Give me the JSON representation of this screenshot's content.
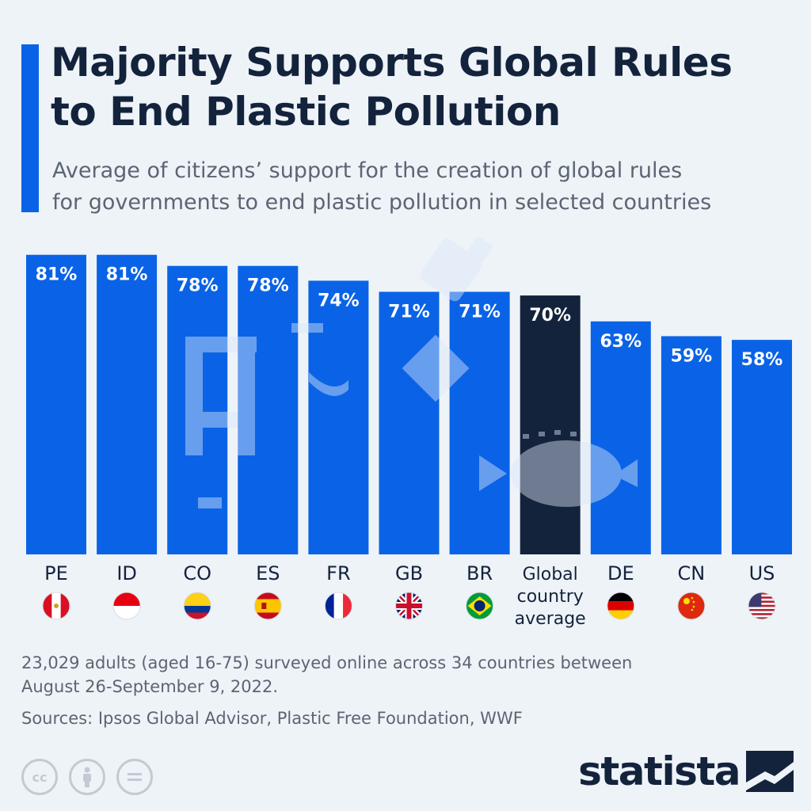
{
  "header": {
    "title_line1": "Majority Supports Global Rules",
    "title_line2": "to End Plastic Pollution",
    "subtitle_line1": "Average of citizens’ support for the creation of global rules",
    "subtitle_line2": "for governments to end plastic pollution in selected countries"
  },
  "chart_data": {
    "type": "bar",
    "title": "Majority Supports Global Rules to End Plastic Pollution",
    "subtitle": "Average of citizens’ support for the creation of global rules for governments to end plastic pollution in selected countries",
    "categories": [
      "PE",
      "ID",
      "CO",
      "ES",
      "FR",
      "GB",
      "BR",
      "Global country average",
      "DE",
      "CN",
      "US"
    ],
    "category_lines": [
      [
        "PE"
      ],
      [
        "ID"
      ],
      [
        "CO"
      ],
      [
        "ES"
      ],
      [
        "FR"
      ],
      [
        "GB"
      ],
      [
        "BR"
      ],
      [
        "Global",
        "country",
        "average"
      ],
      [
        "DE"
      ],
      [
        "CN"
      ],
      [
        "US"
      ]
    ],
    "values": [
      81,
      81,
      78,
      78,
      74,
      71,
      71,
      70,
      63,
      59,
      58
    ],
    "value_labels": [
      "81%",
      "81%",
      "78%",
      "78%",
      "74%",
      "71%",
      "71%",
      "70%",
      "63%",
      "59%",
      "58%"
    ],
    "highlight_index": 7,
    "unit": "%",
    "xlabel": "",
    "ylabel": "",
    "ylim": [
      0,
      100
    ],
    "grid": false,
    "colors": {
      "bar": "#0a63e6",
      "highlight": "#14233c",
      "label": "#ffffff"
    }
  },
  "flags": [
    "flag-peru-icon",
    "flag-indonesia-icon",
    "flag-colombia-icon",
    "flag-spain-icon",
    "flag-france-icon",
    "flag-uk-icon",
    "flag-brazil-icon",
    "",
    "flag-germany-icon",
    "flag-china-icon",
    "flag-usa-icon"
  ],
  "footer": {
    "note_line1": "23,029 adults (aged 16-75) surveyed online across 34 countries between",
    "note_line2": "August 26-September 9, 2022.",
    "sources": "Sources: Ipsos Global Advisor, Plastic Free Foundation, WWF",
    "license_icons": [
      "cc-icon",
      "attribution-icon",
      "no-derivatives-icon"
    ],
    "brand": "statista"
  }
}
